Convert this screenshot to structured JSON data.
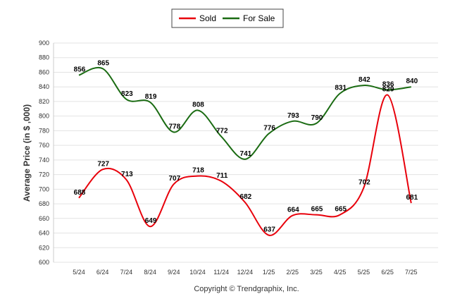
{
  "chart_data": {
    "type": "line",
    "categories": [
      "5/24",
      "6/24",
      "7/24",
      "8/24",
      "9/24",
      "10/24",
      "11/24",
      "12/24",
      "1/25",
      "2/25",
      "3/25",
      "4/25",
      "5/25",
      "6/25",
      "7/25"
    ],
    "series": [
      {
        "name": "Sold",
        "color": "#e8000b",
        "values": [
          688,
          727,
          713,
          649,
          707,
          718,
          711,
          682,
          637,
          664,
          665,
          665,
          702,
          829,
          681
        ]
      },
      {
        "name": "For Sale",
        "color": "#1a6b12",
        "values": [
          856,
          865,
          823,
          819,
          778,
          808,
          772,
          741,
          776,
          793,
          790,
          831,
          842,
          836,
          840
        ]
      }
    ],
    "ylabel": "Average Price (in $ ,000)",
    "ylim": [
      600,
      900
    ],
    "yticks": [
      600,
      620,
      640,
      660,
      680,
      700,
      720,
      740,
      760,
      780,
      800,
      820,
      840,
      860,
      880,
      900
    ],
    "grid": true,
    "legend_position": "top-center",
    "footer": "Copyright © Trendgraphix, Inc."
  }
}
